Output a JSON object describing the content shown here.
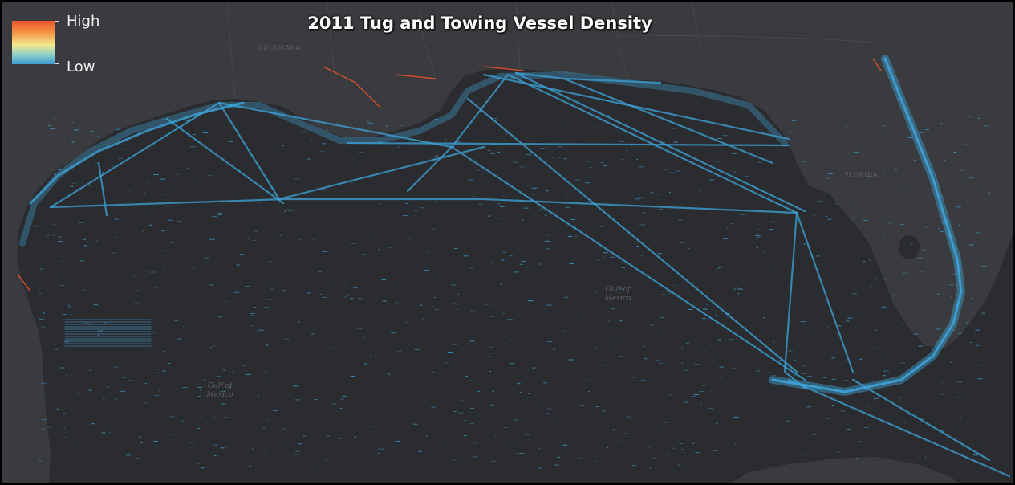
{
  "title": "2011 Tug and Towing Vessel Density",
  "legend": {
    "high_label": "High",
    "low_label": "Low",
    "colors": [
      "#e8532d",
      "#f59042",
      "#f3e98d",
      "#8fd0c7",
      "#3e9ad2"
    ]
  },
  "places": {
    "louisiana": "LOUISIANA",
    "florida": "FLORIDA",
    "gulf_east": "Gulf of Mexico",
    "gulf_west": "Gulf of Mexico"
  },
  "colors": {
    "ocean": "#2b2c2f",
    "land": "#3a3b3e",
    "track": "#3ea3d8",
    "high_density": "#e8532d"
  }
}
